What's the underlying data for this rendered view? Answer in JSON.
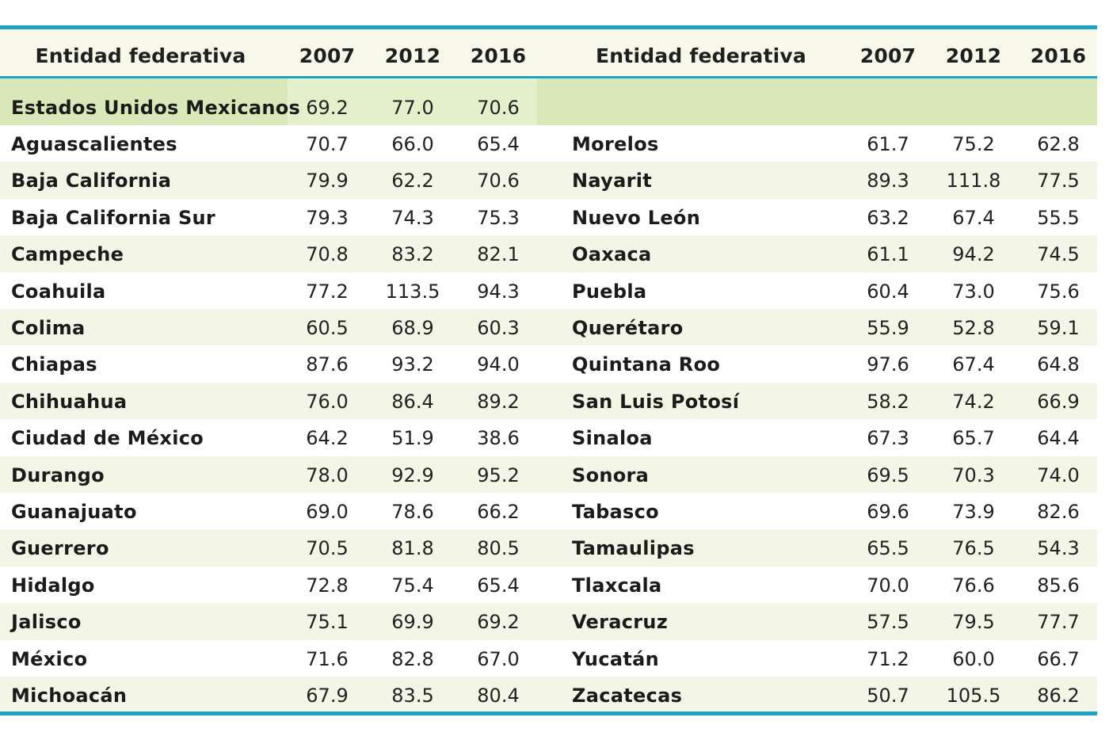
{
  "colors": {
    "accent_rule": "#1aa3c4",
    "header_bg": "#f7f8ea",
    "total_row_bg": "#d9e8b8",
    "alt_row_bg": "#f3f6e6"
  },
  "header": {
    "left_name": "Entidad federativa",
    "left_years": [
      "2007",
      "2012",
      "2016"
    ],
    "right_name": "Entidad federativa",
    "right_years": [
      "2007",
      "2012",
      "2016"
    ]
  },
  "total": {
    "name": "Estados Unidos Mexicanos",
    "values": [
      "69.2",
      "77.0",
      "70.6"
    ]
  },
  "left_rows": [
    {
      "name": "Aguascalientes",
      "values": [
        "70.7",
        "66.0",
        "65.4"
      ]
    },
    {
      "name": "Baja California",
      "values": [
        "79.9",
        "62.2",
        "70.6"
      ]
    },
    {
      "name": "Baja California Sur",
      "values": [
        "79.3",
        "74.3",
        "75.3"
      ]
    },
    {
      "name": "Campeche",
      "values": [
        "70.8",
        "83.2",
        "82.1"
      ]
    },
    {
      "name": "Coahuila",
      "values": [
        "77.2",
        "113.5",
        "94.3"
      ]
    },
    {
      "name": "Colima",
      "values": [
        "60.5",
        "68.9",
        "60.3"
      ]
    },
    {
      "name": "Chiapas",
      "values": [
        "87.6",
        "93.2",
        "94.0"
      ]
    },
    {
      "name": "Chihuahua",
      "values": [
        "76.0",
        "86.4",
        "89.2"
      ]
    },
    {
      "name": "Ciudad de México",
      "values": [
        "64.2",
        "51.9",
        "38.6"
      ]
    },
    {
      "name": "Durango",
      "values": [
        "78.0",
        "92.9",
        "95.2"
      ]
    },
    {
      "name": "Guanajuato",
      "values": [
        "69.0",
        "78.6",
        "66.2"
      ]
    },
    {
      "name": "Guerrero",
      "values": [
        "70.5",
        "81.8",
        "80.5"
      ]
    },
    {
      "name": "Hidalgo",
      "values": [
        "72.8",
        "75.4",
        "65.4"
      ]
    },
    {
      "name": "Jalisco",
      "values": [
        "75.1",
        "69.9",
        "69.2"
      ]
    },
    {
      "name": "México",
      "values": [
        "71.6",
        "82.8",
        "67.0"
      ]
    },
    {
      "name": "Michoacán",
      "values": [
        "67.9",
        "83.5",
        "80.4"
      ]
    }
  ],
  "right_rows": [
    {
      "name": "Morelos",
      "values": [
        "61.7",
        "75.2",
        "62.8"
      ]
    },
    {
      "name": "Nayarit",
      "values": [
        "89.3",
        "111.8",
        "77.5"
      ]
    },
    {
      "name": "Nuevo León",
      "values": [
        "63.2",
        "67.4",
        "55.5"
      ]
    },
    {
      "name": "Oaxaca",
      "values": [
        "61.1",
        "94.2",
        "74.5"
      ]
    },
    {
      "name": "Puebla",
      "values": [
        "60.4",
        "73.0",
        "75.6"
      ]
    },
    {
      "name": "Querétaro",
      "values": [
        "55.9",
        "52.8",
        "59.1"
      ]
    },
    {
      "name": "Quintana Roo",
      "values": [
        "97.6",
        "67.4",
        "64.8"
      ]
    },
    {
      "name": "San Luis Potosí",
      "values": [
        "58.2",
        "74.2",
        "66.9"
      ]
    },
    {
      "name": "Sinaloa",
      "values": [
        "67.3",
        "65.7",
        "64.4"
      ]
    },
    {
      "name": "Sonora",
      "values": [
        "69.5",
        "70.3",
        "74.0"
      ]
    },
    {
      "name": "Tabasco",
      "values": [
        "69.6",
        "73.9",
        "82.6"
      ]
    },
    {
      "name": "Tamaulipas",
      "values": [
        "65.5",
        "76.5",
        "54.3"
      ]
    },
    {
      "name": "Tlaxcala",
      "values": [
        "70.0",
        "76.6",
        "85.6"
      ]
    },
    {
      "name": "Veracruz",
      "values": [
        "57.5",
        "79.5",
        "77.7"
      ]
    },
    {
      "name": "Yucatán",
      "values": [
        "71.2",
        "60.0",
        "66.7"
      ]
    },
    {
      "name": "Zacatecas",
      "values": [
        "50.7",
        "105.5",
        "86.2"
      ]
    }
  ]
}
